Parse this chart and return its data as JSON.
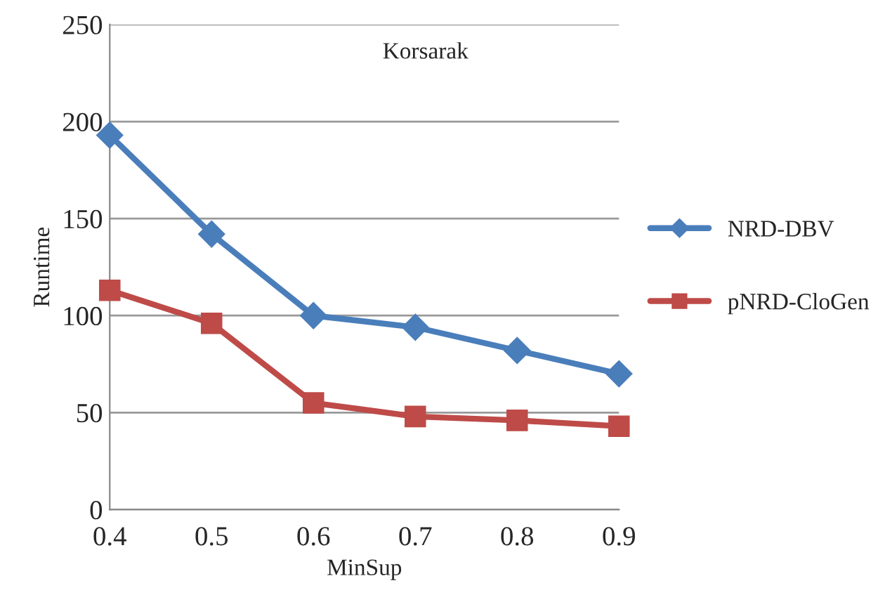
{
  "chart_data": {
    "type": "line",
    "xlabel": "MinSup",
    "ylabel": "Runtime",
    "annotations": [
      "Korsarak"
    ],
    "x": [
      0.4,
      0.5,
      0.6,
      0.7,
      0.8,
      0.9
    ],
    "series": [
      {
        "name": "NRD-DBV",
        "color": "#4a7ebb",
        "marker": "diamond",
        "values": [
          193,
          142,
          100,
          94,
          82,
          70
        ]
      },
      {
        "name": "pNRD-CloGen",
        "color": "#be4b48",
        "marker": "square",
        "values": [
          113,
          96,
          55,
          48,
          46,
          43
        ]
      }
    ],
    "xlim": [
      0.4,
      0.9
    ],
    "xticks": [
      0.4,
      0.5,
      0.6,
      0.7,
      0.8,
      0.9
    ],
    "ylim": [
      0,
      250
    ],
    "yticks": [
      0,
      50,
      100,
      150,
      200,
      250
    ],
    "grid": "y",
    "legend": "right",
    "line_style": "solid"
  }
}
